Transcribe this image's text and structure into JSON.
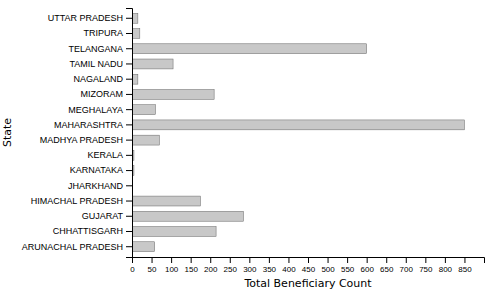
{
  "chart_data": {
    "type": "bar",
    "orientation": "horizontal",
    "categories": [
      "ARUNACHAL PRADESH",
      "CHHATTISGARH",
      "GUJARAT",
      "HIMACHAL PRADESH",
      "JHARKHAND",
      "KARNATAKA",
      "KERALA",
      "MADHYA PRADESH",
      "MAHARASHTRA",
      "MEGHALAYA",
      "MIZORAM",
      "NAGALAND",
      "TAMIL NADU",
      "TELANGANA",
      "TRIPURA",
      "UTTAR PRADESH"
    ],
    "values": [
      58,
      215,
      285,
      175,
      0,
      5,
      5,
      70,
      850,
      60,
      210,
      15,
      105,
      600,
      20,
      15
    ],
    "color": "#c8c8c8",
    "xlabel": "Total Beneficiary Count",
    "ylabel": "State",
    "xlim": [
      0,
      900
    ],
    "xticks": [
      0,
      50,
      100,
      150,
      200,
      250,
      300,
      350,
      400,
      450,
      500,
      550,
      600,
      650,
      700,
      750,
      800,
      850
    ]
  }
}
